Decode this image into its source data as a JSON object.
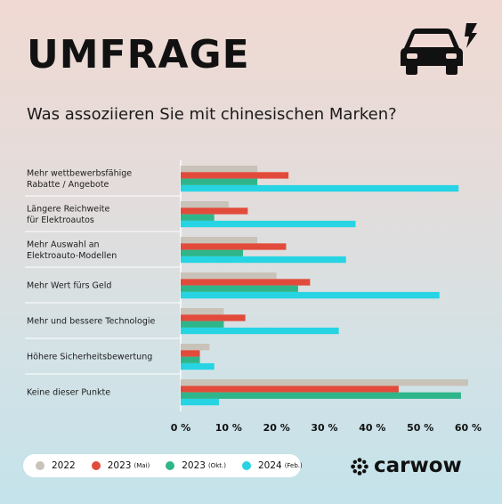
{
  "header": {
    "title": "UMFRAGE",
    "subtitle": "Was assoziieren Sie mit chinesischen Marken?"
  },
  "icons": {
    "car": "car-bolt-icon",
    "brand_mark": "carwow-star-icon"
  },
  "brand": {
    "name": "carwow"
  },
  "colors": {
    "2022": "#c9c2b8",
    "2023_mai": "#e24b3b",
    "2023_okt": "#2fb58a",
    "2024_feb": "#27d4e3"
  },
  "legend": [
    {
      "name": "2022",
      "note": ""
    },
    {
      "name": "2023",
      "note": "(Mai)"
    },
    {
      "name": "2023",
      "note": "(Okt.)"
    },
    {
      "name": "2024",
      "note": "(Feb.)"
    }
  ],
  "chart_data": {
    "type": "bar",
    "orientation": "horizontal",
    "categories": [
      [
        "Mehr wettbewerbsfähige",
        "Rabatte / Angebote"
      ],
      [
        "Längere Reichweite",
        "für Elektroautos"
      ],
      [
        "Mehr Auswahl an",
        "Elektroauto-Modellen"
      ],
      [
        "Mehr Wert fürs Geld"
      ],
      [
        "Mehr und bessere Technologie"
      ],
      [
        "Höhere Sicherheitsbewertung"
      ],
      [
        "Keine dieser Punkte"
      ]
    ],
    "series": [
      {
        "key": "2022",
        "values": [
          16,
          10,
          16,
          20,
          9,
          6,
          60
        ]
      },
      {
        "key": "2023_mai",
        "values": [
          22.5,
          14,
          22,
          27,
          13.5,
          4,
          45.5
        ]
      },
      {
        "key": "2023_okt",
        "values": [
          16,
          7,
          13,
          24.5,
          9,
          4,
          58.5
        ]
      },
      {
        "key": "2024_feb",
        "values": [
          58,
          36.5,
          34.5,
          54,
          33,
          7,
          8
        ]
      }
    ],
    "xlim": [
      0,
      60
    ],
    "xticks": [
      "0 %",
      "10 %",
      "20 %",
      "30 %",
      "40 %",
      "50 %",
      "60 %"
    ],
    "grid": true,
    "legend_position": "bottom-left"
  }
}
